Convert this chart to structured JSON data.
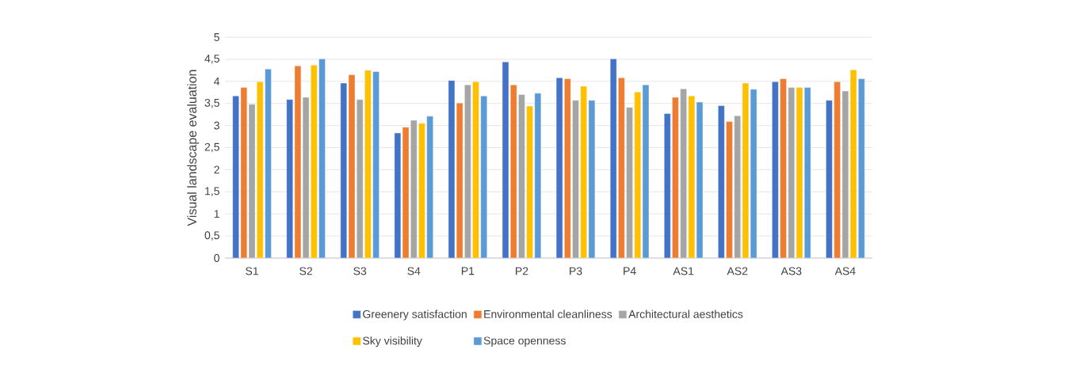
{
  "chart_data": {
    "type": "bar",
    "ylabel": "Visual landscape evaluation",
    "categories": [
      "S1",
      "S2",
      "S3",
      "S4",
      "P1",
      "P2",
      "P3",
      "P4",
      "AS1",
      "AS2",
      "AS3",
      "AS4"
    ],
    "series": [
      {
        "name": "Greenery satisfaction",
        "color": "#4472c4",
        "values": [
          3.67,
          3.59,
          3.96,
          2.83,
          4.02,
          4.44,
          4.08,
          4.51,
          3.27,
          3.45,
          3.99,
          3.57
        ]
      },
      {
        "name": "Environmental cleanliness",
        "color": "#ed7d31",
        "values": [
          3.86,
          4.35,
          4.15,
          2.96,
          3.51,
          3.92,
          4.06,
          4.08,
          3.64,
          3.09,
          4.06,
          3.99
        ]
      },
      {
        "name": "Architectural aesthetics",
        "color": "#a5a5a5",
        "values": [
          3.48,
          3.64,
          3.59,
          3.12,
          3.92,
          3.7,
          3.57,
          3.41,
          3.83,
          3.22,
          3.86,
          3.78
        ]
      },
      {
        "name": "Sky visibility",
        "color": "#ffc000",
        "values": [
          3.99,
          4.37,
          4.25,
          3.05,
          3.99,
          3.44,
          3.89,
          3.76,
          3.67,
          3.96,
          3.86,
          4.26
        ]
      },
      {
        "name": "Space openness",
        "color": "#5b9bd5",
        "values": [
          4.28,
          4.51,
          4.22,
          3.21,
          3.67,
          3.73,
          3.57,
          3.92,
          3.53,
          3.82,
          3.86,
          4.06
        ]
      }
    ],
    "ylim": [
      0,
      5
    ],
    "yticks": [
      0,
      {
        "value": 0.5,
        "label": "0,5"
      },
      1,
      {
        "value": 1.5,
        "label": "1,5"
      },
      2,
      {
        "value": 2.5,
        "label": "2,5"
      },
      3,
      {
        "value": 3.5,
        "label": "3,5"
      },
      4,
      {
        "value": 4.5,
        "label": "4,5"
      },
      5
    ],
    "grid": "y",
    "legend": "bottom"
  }
}
